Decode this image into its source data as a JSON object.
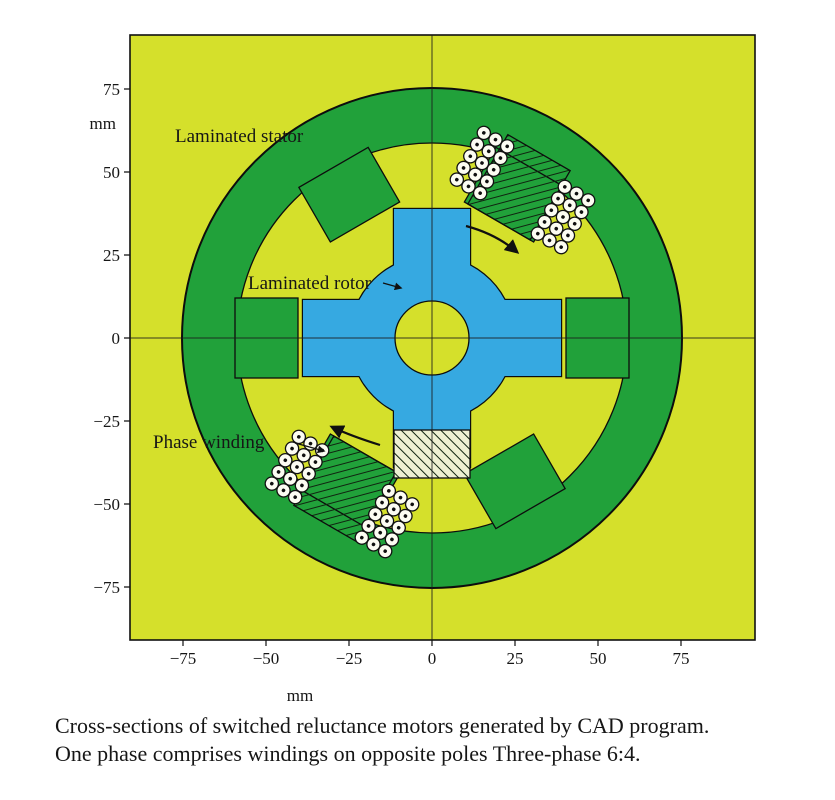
{
  "fig": {
    "annotations": {
      "stator": "Laminated stator",
      "rotor": "Laminated rotor",
      "winding": "Phase winding"
    },
    "axes": {
      "x_unit": "mm",
      "y_unit": "mm",
      "x_ticks": [
        "−75",
        "−50",
        "−25",
        "0",
        "25",
        "50",
        "75"
      ],
      "y_ticks": [
        "75",
        "50",
        "25",
        "0",
        "−25",
        "−50",
        "−75"
      ],
      "x_range_mm": [
        -91,
        97
      ],
      "y_range_mm": [
        -91,
        90
      ]
    },
    "caption": {
      "line1": "Cross-sections of switched reluctance motors generated by CAD program.",
      "line2": "One phase comprises windings on opposite poles Three-phase 6:4."
    },
    "motor": {
      "type_note": "Three-phase 6:4",
      "stator_poles": 6,
      "rotor_poles": 4
    },
    "colors": {
      "plot_bg": "#d5e02b",
      "stator_green": "#21a13a",
      "rotor_blue": "#36a9e1",
      "hatch_bg": "#eef0d2",
      "page_bg": "#ffffff"
    }
  }
}
